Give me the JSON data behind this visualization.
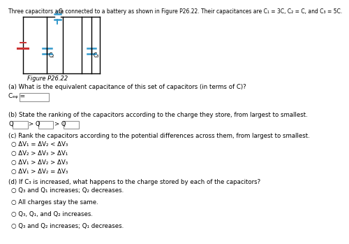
{
  "title": "Three capacitors are connected to a battery as shown in Figure P26.22. Their capacitances are C₁ = 3C, C₂ = C, and C₃ = 5C.",
  "figure_label": "Figure P26.22",
  "part_a_text": "(a) What is the equivalent capacitance of this set of capacitors (in terms of C)?",
  "ceq_label": "Cₑᵩ =",
  "part_b_text": "(b) State the ranking of the capacitors according to the charge they store, from largest to smallest.",
  "part_c_text": "(c) Rank the capacitors according to the potential differences across them, from largest to smallest.",
  "part_c_options": [
    "○ ΔV₁ = ΔV₂ < ΔV₃",
    "○ ΔV₂ > ΔV₃ > ΔV₁",
    "○ ΔV₁ > ΔV₂ > ΔV₃",
    "○ ΔV₁ > ΔV₂ = ΔV₃"
  ],
  "part_d_text": "(d) If C₃ is increased, what happens to the charge stored by each of the capacitors?",
  "part_d_options": [
    "○ Q₃ and Q₁ increases; Q₂ decreases.",
    "○ All charges stay the same.",
    "○ Q₃, Q₁, and Q₂ increases.",
    "○ Q₃ and Q₂ increases; Q₁ decreases."
  ],
  "bg_color": "#ffffff",
  "text_color": "#000000",
  "line_color": "#000000",
  "cap_color": "#3399cc",
  "bat_color": "#cc3333"
}
